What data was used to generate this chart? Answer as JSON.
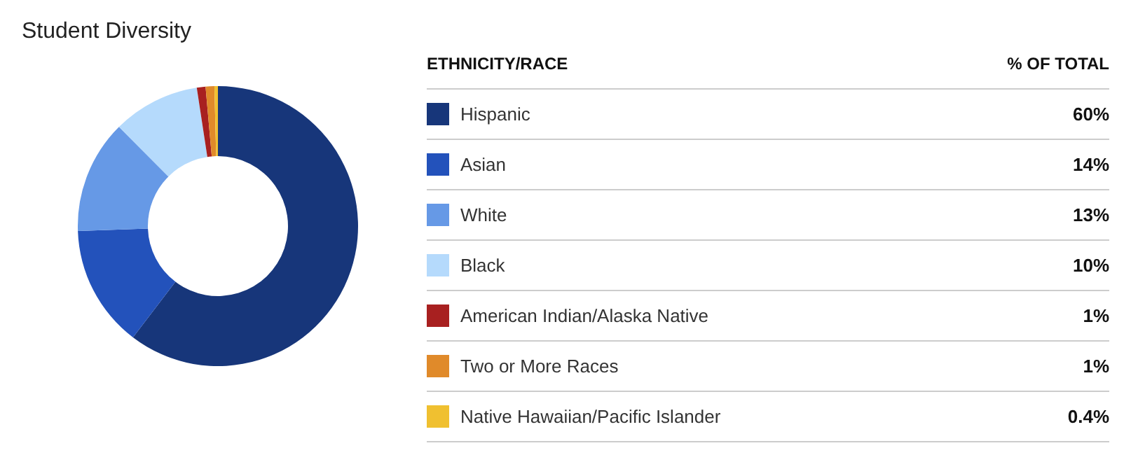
{
  "chart_data": {
    "type": "donut",
    "title": "Student Diversity",
    "legend_title": "ETHNICITY/RACE",
    "annotations": [
      "% OF TOTAL"
    ],
    "categories": [
      "Hispanic",
      "Asian",
      "White",
      "Black",
      "American Indian/Alaska Native",
      "Two or More Races",
      "Native Hawaiian/Pacific Islander"
    ],
    "values": [
      60,
      14,
      13,
      10,
      1,
      1,
      0.4
    ],
    "colors": [
      "#17367a",
      "#2352bb",
      "#6699e6",
      "#b5dafc",
      "#a82020",
      "#e08a2a",
      "#f0c030"
    ],
    "value_labels": [
      "60%",
      "14%",
      "13%",
      "10%",
      "1%",
      "1%",
      "0.4%"
    ],
    "legend": "right"
  }
}
